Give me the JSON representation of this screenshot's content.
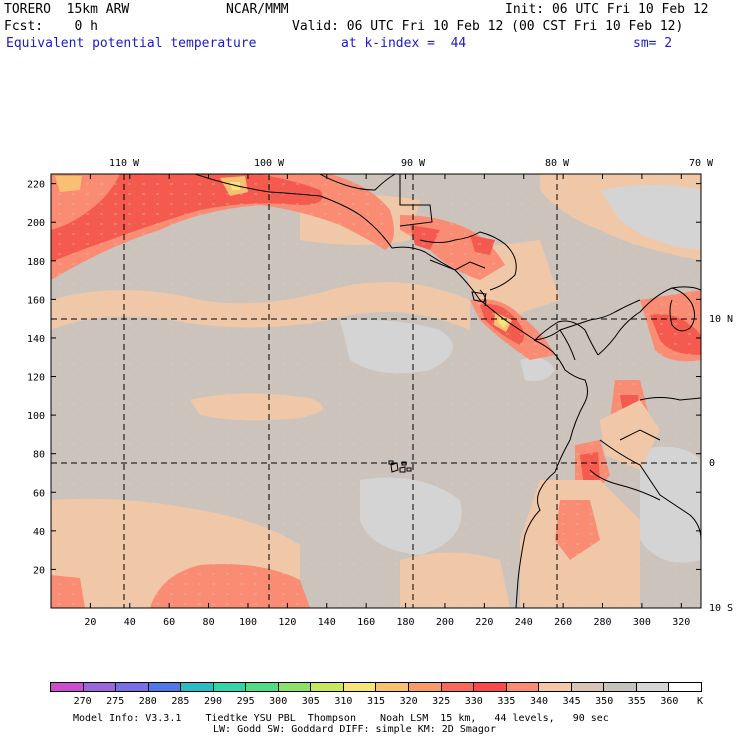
{
  "header": {
    "model": "TORERO  15km ARW",
    "center": "NCAR/MMM",
    "init": "Init: 06 UTC Fri 10 Feb 12",
    "fcst": "Fcst:    0 h",
    "valid": "Valid: 06 UTC Fri 10 Feb 12 (00 CST Fri 10 Feb 12)",
    "field": "Equivalent potential temperature",
    "level": "at k-index =  44",
    "smooth": "sm= 2"
  },
  "map": {
    "lon_labels": [
      "110 W",
      "100 W",
      "90 W",
      "80 W",
      "70 W"
    ],
    "lat_labels": [
      "10 N",
      "0",
      "10 S"
    ],
    "y_ticks": [
      "20",
      "40",
      "60",
      "80",
      "100",
      "120",
      "140",
      "160",
      "180",
      "200",
      "220"
    ],
    "x_ticks": [
      "20",
      "40",
      "60",
      "80",
      "100",
      "120",
      "140",
      "160",
      "180",
      "200",
      "220",
      "240",
      "260",
      "280",
      "300",
      "320"
    ]
  },
  "colorbar": {
    "labels": [
      "270",
      "275",
      "280",
      "285",
      "290",
      "295",
      "300",
      "305",
      "310",
      "315",
      "320",
      "325",
      "330",
      "335",
      "340",
      "345",
      "350",
      "355",
      "360"
    ],
    "unit": "K",
    "colors": [
      "#c94fcc",
      "#9a66d8",
      "#7a6ee6",
      "#4d78e6",
      "#27bcc6",
      "#30d6a8",
      "#52dc86",
      "#8ae26a",
      "#c8e85c",
      "#f8e47a",
      "#f8c070",
      "#f89a6a",
      "#f86a58",
      "#f84a48",
      "#fa8c72",
      "#f4c8a4",
      "#d8c4b4",
      "#c8c2bc",
      "#d6d6d6",
      "#ffffff"
    ]
  },
  "footer": {
    "line1": "Model Info: V3.3.1    Tiedtke YSU PBL  Thompson    Noah LSM  15 km,   44 levels,   90 sec",
    "line2": "LW: Godd SW: Goddard DIFF: simple KM: 2D Smagor"
  }
}
